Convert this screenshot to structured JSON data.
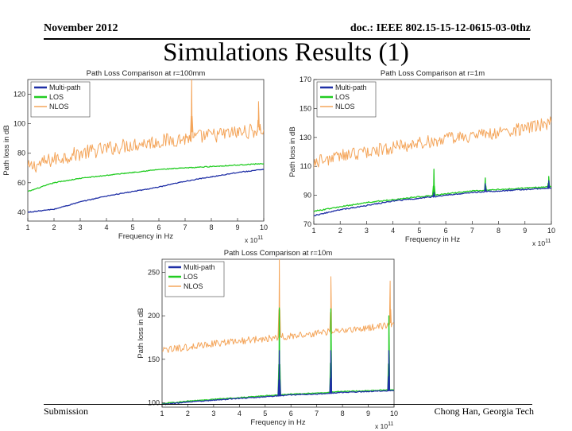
{
  "header": {
    "date": "November 2012",
    "doc_id": "doc.: IEEE 802.15-15-12-0615-03-0thz",
    "title": "Simulations Results (1)"
  },
  "footer": {
    "left": "Submission",
    "right": "Chong Han, Georgia Tech"
  },
  "colors": {
    "multipath": "#1f2fa6",
    "los": "#22cc22",
    "nlos": "#f4a55a"
  },
  "chart_data": [
    {
      "type": "line",
      "title": "Path Loss Comparison at r=100mm",
      "xlabel": "Frequency in Hz",
      "ylabel": "Path loss in dB",
      "x_multiplier": "x 10",
      "x_exponent": "11",
      "xlim": [
        1,
        10
      ],
      "ylim": [
        34,
        130
      ],
      "xticks": [
        1,
        2,
        3,
        4,
        5,
        6,
        7,
        8,
        9,
        10
      ],
      "yticks": [
        40,
        60,
        80,
        100,
        120
      ],
      "legend": [
        "Multi-path",
        "LOS",
        "NLOS"
      ],
      "legend_position": "top-left",
      "series": [
        {
          "name": "Multi-path",
          "x": [
            1,
            2,
            3,
            4,
            5,
            6,
            7,
            8,
            9,
            10
          ],
          "values": [
            40,
            42,
            47,
            51,
            54,
            57,
            61,
            64,
            67,
            69
          ],
          "noise": 0.3,
          "spikes": []
        },
        {
          "name": "LOS",
          "x": [
            1,
            2,
            3,
            4,
            5,
            6,
            7,
            8,
            9,
            10
          ],
          "values": [
            54,
            60,
            63,
            65,
            67,
            69,
            70,
            71,
            72,
            73
          ],
          "noise": 0.3,
          "spikes": []
        },
        {
          "name": "NLOS",
          "x": [
            1,
            2,
            3,
            4,
            5,
            6,
            7,
            8,
            9,
            10
          ],
          "values": [
            70,
            76,
            80,
            83,
            86,
            88,
            90,
            92,
            94,
            96
          ],
          "noise": 5,
          "spikes": [
            {
              "x": 7.25,
              "y": 132
            },
            {
              "x": 9.8,
              "y": 115
            }
          ]
        }
      ]
    },
    {
      "type": "line",
      "title": "Path Loss Comparison at r=1m",
      "xlabel": "Frequency in Hz",
      "ylabel": "Path loss in dB",
      "x_multiplier": "x 10",
      "x_exponent": "11",
      "xlim": [
        1,
        10
      ],
      "ylim": [
        70,
        170
      ],
      "xticks": [
        1,
        2,
        3,
        4,
        5,
        6,
        7,
        8,
        9,
        10
      ],
      "yticks": [
        70,
        90,
        110,
        130,
        150,
        170
      ],
      "legend": [
        "Multi-path",
        "LOS",
        "NLOS"
      ],
      "legend_position": "top-left",
      "series": [
        {
          "name": "Multi-path",
          "x": [
            1,
            2,
            3,
            4,
            5,
            6,
            7,
            8,
            9,
            10
          ],
          "values": [
            76,
            80,
            83,
            86,
            88,
            90,
            92,
            93,
            94,
            95
          ],
          "noise": 0.4,
          "spikes": [
            {
              "x": 5.55,
              "y": 92
            },
            {
              "x": 7.5,
              "y": 98
            },
            {
              "x": 9.9,
              "y": 100
            }
          ]
        },
        {
          "name": "LOS",
          "x": [
            1,
            2,
            3,
            4,
            5,
            6,
            7,
            8,
            9,
            10
          ],
          "values": [
            79,
            82,
            85,
            87,
            89,
            91,
            93,
            94,
            95,
            96
          ],
          "noise": 0.4,
          "spikes": [
            {
              "x": 5.55,
              "y": 108
            },
            {
              "x": 7.5,
              "y": 102
            },
            {
              "x": 9.9,
              "y": 103
            }
          ]
        },
        {
          "name": "NLOS",
          "x": [
            1,
            2,
            3,
            4,
            5,
            6,
            7,
            8,
            9,
            10
          ],
          "values": [
            113,
            117,
            120,
            123,
            126,
            129,
            131,
            133,
            136,
            140
          ],
          "noise": 4.5,
          "spikes": []
        }
      ]
    },
    {
      "type": "line",
      "title": "Path Loss Comparison at r=10m",
      "xlabel": "Frequency in Hz",
      "ylabel": "Path loss in dB",
      "x_multiplier": "x 10",
      "x_exponent": "11",
      "xlim": [
        1,
        10
      ],
      "ylim": [
        95,
        265
      ],
      "xticks": [
        1,
        2,
        3,
        4,
        5,
        6,
        7,
        8,
        9,
        10
      ],
      "yticks": [
        100,
        150,
        200,
        250
      ],
      "legend": [
        "Multi-path",
        "LOS",
        "NLOS"
      ],
      "legend_position": "top-left",
      "series": [
        {
          "name": "Multi-path",
          "x": [
            1,
            2,
            3,
            4,
            5,
            6,
            7,
            8,
            9,
            10
          ],
          "values": [
            98,
            101,
            103,
            105,
            107,
            109,
            110,
            112,
            113,
            114
          ],
          "noise": 0.5,
          "spikes": [
            {
              "x": 5.55,
              "y": 160
            },
            {
              "x": 7.55,
              "y": 160
            },
            {
              "x": 9.8,
              "y": 160
            }
          ]
        },
        {
          "name": "LOS",
          "x": [
            1,
            2,
            3,
            4,
            5,
            6,
            7,
            8,
            9,
            10
          ],
          "values": [
            99,
            102,
            104,
            106,
            108,
            110,
            111,
            113,
            114,
            115
          ],
          "noise": 0.5,
          "spikes": [
            {
              "x": 5.55,
              "y": 209
            },
            {
              "x": 7.55,
              "y": 208
            },
            {
              "x": 9.8,
              "y": 200
            }
          ]
        },
        {
          "name": "NLOS",
          "x": [
            1,
            2,
            3,
            4,
            5,
            6,
            7,
            8,
            9,
            10
          ],
          "values": [
            160,
            164,
            168,
            171,
            174,
            177,
            180,
            183,
            186,
            190
          ],
          "noise": 4,
          "spikes": [
            {
              "x": 5.55,
              "y": 265
            },
            {
              "x": 7.55,
              "y": 245
            },
            {
              "x": 9.85,
              "y": 240
            }
          ]
        }
      ]
    }
  ]
}
